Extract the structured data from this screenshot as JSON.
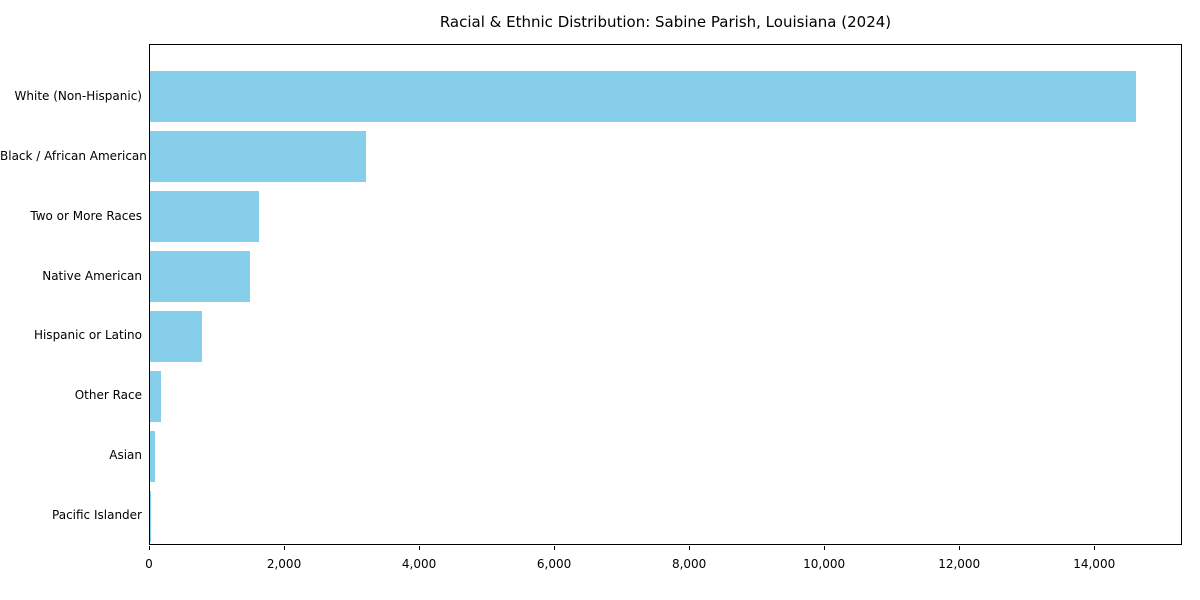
{
  "chart_data": {
    "type": "bar",
    "orientation": "horizontal",
    "title": "Racial & Ethnic Distribution: Sabine Parish, Louisiana (2024)",
    "categories": [
      "White (Non-Hispanic)",
      "Black / African American",
      "Two or More Races",
      "Native American",
      "Hispanic or Latino",
      "Other Race",
      "Asian",
      "Pacific Islander"
    ],
    "values": [
      14600,
      3200,
      1620,
      1480,
      770,
      160,
      75,
      10
    ],
    "xlabel": "",
    "ylabel": "",
    "xlim": [
      0,
      15300
    ],
    "xticks": [
      0,
      2000,
      4000,
      6000,
      8000,
      10000,
      12000,
      14000
    ],
    "xtick_labels": [
      "0",
      "2,000",
      "4,000",
      "6,000",
      "8,000",
      "10,000",
      "12,000",
      "14,000"
    ],
    "bar_color": "#87CEEB",
    "grid": false,
    "legend": false,
    "background_color": "#ffffff"
  }
}
